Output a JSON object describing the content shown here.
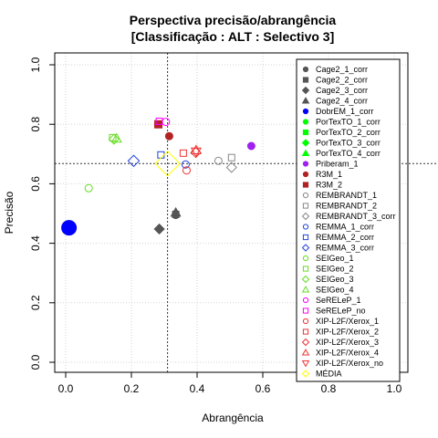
{
  "chart_data": {
    "type": "scatter",
    "title": "Perspectiva precisão/abrangência",
    "subtitle": "[Classificação : ALT : Selectivo 3]",
    "xlabel": "Abrangência",
    "ylabel": "Precisão",
    "xlim": [
      0,
      1
    ],
    "ylim": [
      0,
      1
    ],
    "xticks": [
      0.0,
      0.2,
      0.4,
      0.6,
      0.8,
      1.0
    ],
    "yticks": [
      0.0,
      0.2,
      0.4,
      0.6,
      0.8,
      1.0
    ],
    "xtick_labels": [
      "0.0",
      "0.2",
      "0.4",
      "0.6",
      "0.8",
      "1.0"
    ],
    "ytick_labels": [
      "0.0",
      "0.2",
      "0.4",
      "0.6",
      "0.8",
      "1.0"
    ],
    "grid": true,
    "legend_position": "right",
    "reference_lines": {
      "x": 0.31,
      "y": 0.668
    },
    "series": [
      {
        "name": "Cage2_1_corr",
        "shape": "circle",
        "fill": true,
        "color": "#555555",
        "x": 0.335,
        "y": 0.495,
        "size": 4
      },
      {
        "name": "Cage2_2_corr",
        "shape": "square",
        "fill": true,
        "color": "#555555",
        "x": 0.335,
        "y": 0.497,
        "size": 3.5
      },
      {
        "name": "Cage2_3_corr",
        "shape": "diamond",
        "fill": true,
        "color": "#555555",
        "x": 0.285,
        "y": 0.448,
        "size": 4
      },
      {
        "name": "Cage2_4_corr",
        "shape": "triangle",
        "fill": true,
        "color": "#555555",
        "x": 0.335,
        "y": 0.503,
        "size": 4
      },
      {
        "name": "DobrEM_1_corr",
        "shape": "circle",
        "fill": true,
        "color": "#0000ff",
        "x": 0.01,
        "y": 0.452,
        "size": 8
      },
      {
        "name": "PorTexTO_1_corr",
        "shape": "circle",
        "fill": true,
        "color": "#00ff00",
        "x": null,
        "y": null,
        "size": 4
      },
      {
        "name": "PorTexTO_2_corr",
        "shape": "square",
        "fill": true,
        "color": "#00ff00",
        "x": null,
        "y": null,
        "size": 4
      },
      {
        "name": "PorTexTO_3_corr",
        "shape": "diamond",
        "fill": true,
        "color": "#00ff00",
        "x": null,
        "y": null,
        "size": 4
      },
      {
        "name": "PorTexTO_4_corr",
        "shape": "triangle",
        "fill": true,
        "color": "#00ff00",
        "x": null,
        "y": null,
        "size": 4
      },
      {
        "name": "Priberam_1",
        "shape": "circle",
        "fill": true,
        "color": "#a020f0",
        "x": 0.565,
        "y": 0.727,
        "size": 4
      },
      {
        "name": "R3M_1",
        "shape": "circle",
        "fill": true,
        "color": "#b22222",
        "x": 0.315,
        "y": 0.76,
        "size": 4
      },
      {
        "name": "R3M_2",
        "shape": "square",
        "fill": true,
        "color": "#b22222",
        "x": 0.282,
        "y": 0.8,
        "size": 4
      },
      {
        "name": "REMBRANDT_1",
        "shape": "circle",
        "fill": false,
        "color": "#888888",
        "x": 0.465,
        "y": 0.677,
        "size": 4
      },
      {
        "name": "REMBRANDT_2",
        "shape": "square",
        "fill": false,
        "color": "#888888",
        "x": 0.505,
        "y": 0.688,
        "size": 3.5
      },
      {
        "name": "REMBRANDT_3_corr",
        "shape": "diamond",
        "fill": false,
        "color": "#888888",
        "x": 0.505,
        "y": 0.655,
        "size": 4
      },
      {
        "name": "REMMA_1_corr",
        "shape": "circle",
        "fill": false,
        "color": "#2244dd",
        "x": 0.365,
        "y": 0.665,
        "size": 4
      },
      {
        "name": "REMMA_2_corr",
        "shape": "square",
        "fill": false,
        "color": "#2244dd",
        "x": 0.29,
        "y": 0.697,
        "size": 3.5
      },
      {
        "name": "REMMA_3_corr",
        "shape": "diamond",
        "fill": false,
        "color": "#2244dd",
        "x": 0.207,
        "y": 0.677,
        "size": 4.5
      },
      {
        "name": "SEIGeo_1",
        "shape": "circle",
        "fill": false,
        "color": "#66dd22",
        "x": 0.07,
        "y": 0.585,
        "size": 4
      },
      {
        "name": "SEIGeo_2",
        "shape": "square",
        "fill": false,
        "color": "#66dd22",
        "x": 0.143,
        "y": 0.755,
        "size": 3.5
      },
      {
        "name": "SEIGeo_3",
        "shape": "diamond",
        "fill": false,
        "color": "#66dd22",
        "x": 0.147,
        "y": 0.75,
        "size": 4
      },
      {
        "name": "SEIGeo_4",
        "shape": "triangle",
        "fill": false,
        "color": "#66dd22",
        "x": 0.155,
        "y": 0.752,
        "size": 4
      },
      {
        "name": "SeRELeP_1",
        "shape": "circle",
        "fill": false,
        "color": "#ff00ff",
        "x": 0.305,
        "y": 0.808,
        "size": 4
      },
      {
        "name": "SeRELeP_no",
        "shape": "square",
        "fill": false,
        "color": "#ff00ff",
        "x": 0.285,
        "y": 0.81,
        "size": 3.5
      },
      {
        "name": "XIP-L2F/Xerox_1",
        "shape": "circle",
        "fill": false,
        "color": "#ee3333",
        "x": 0.368,
        "y": 0.645,
        "size": 4
      },
      {
        "name": "XIP-L2F/Xerox_2",
        "shape": "square",
        "fill": false,
        "color": "#ee3333",
        "x": 0.358,
        "y": 0.703,
        "size": 3.5
      },
      {
        "name": "XIP-L2F/Xerox_3",
        "shape": "diamond",
        "fill": false,
        "color": "#ee3333",
        "x": 0.396,
        "y": 0.705,
        "size": 4
      },
      {
        "name": "XIP-L2F/Xerox_4",
        "shape": "triangle",
        "fill": false,
        "color": "#ee3333",
        "x": 0.397,
        "y": 0.713,
        "size": 4
      },
      {
        "name": "XIP-L2F/Xerox_no",
        "shape": "invtriangle",
        "fill": false,
        "color": "#ee3333",
        "x": 0.397,
        "y": 0.708,
        "size": 4
      },
      {
        "name": "MÉDIA",
        "shape": "diamond",
        "fill": false,
        "color": "#ffff00",
        "x": 0.31,
        "y": 0.668,
        "size": 10
      }
    ]
  }
}
